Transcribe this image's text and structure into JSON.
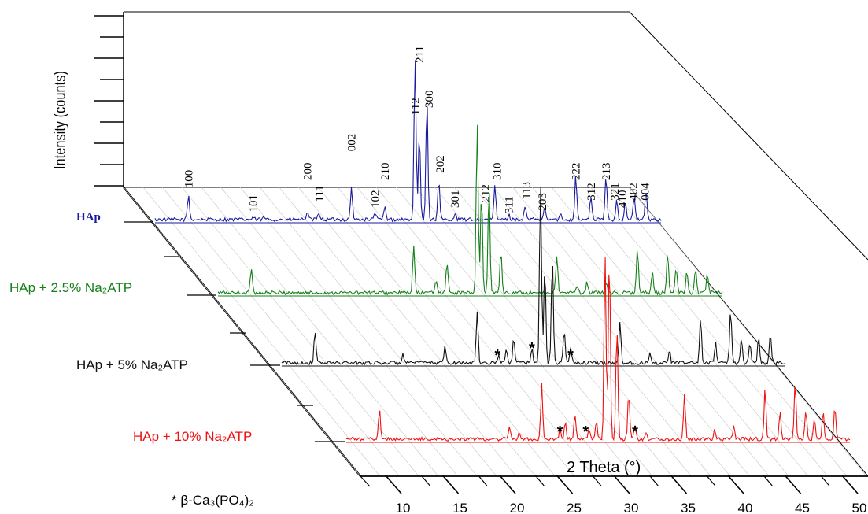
{
  "chart_data": {
    "type": "line",
    "xlabel": "2 Theta (°)",
    "ylabel": "Intensity (counts)",
    "x_ticks": [
      10,
      15,
      20,
      25,
      30,
      35,
      40,
      45,
      50
    ],
    "xlim": [
      10,
      50
    ],
    "footnote": {
      "mark": "*",
      "text": "β-Ca₃(PO₄)₂"
    },
    "series": [
      {
        "name": "HAp",
        "color": "#1a1a9e",
        "peaks": [
          {
            "x": 10.8,
            "y": 34
          },
          {
            "x": 16.8,
            "y": 3
          },
          {
            "x": 17.8,
            "y": 3
          },
          {
            "x": 21.8,
            "y": 10
          },
          {
            "x": 22.9,
            "y": 10
          },
          {
            "x": 25.9,
            "y": 44
          },
          {
            "x": 28.1,
            "y": 10
          },
          {
            "x": 29.0,
            "y": 18
          },
          {
            "x": 31.8,
            "y": 228
          },
          {
            "x": 32.2,
            "y": 118
          },
          {
            "x": 32.9,
            "y": 170
          },
          {
            "x": 34.0,
            "y": 54
          },
          {
            "x": 35.5,
            "y": 8
          },
          {
            "x": 39.2,
            "y": 46
          },
          {
            "x": 40.5,
            "y": 6
          },
          {
            "x": 42.0,
            "y": 18
          },
          {
            "x": 43.8,
            "y": 16
          },
          {
            "x": 45.3,
            "y": 6
          },
          {
            "x": 46.7,
            "y": 62
          },
          {
            "x": 48.1,
            "y": 32
          },
          {
            "x": 49.5,
            "y": 60
          },
          {
            "x": 50.5,
            "y": 28
          },
          {
            "x": 51.3,
            "y": 22
          },
          {
            "x": 52.1,
            "y": 32
          },
          {
            "x": 53.2,
            "y": 40
          }
        ],
        "annotations": [
          {
            "text": "100",
            "x": 10.8,
            "y": 40
          },
          {
            "text": "101",
            "x": 16.8,
            "y": 6
          },
          {
            "text": "200",
            "x": 21.8,
            "y": 50
          },
          {
            "text": "111",
            "x": 22.9,
            "y": 20
          },
          {
            "text": "002",
            "x": 25.9,
            "y": 90
          },
          {
            "text": "102",
            "x": 28.1,
            "y": 12
          },
          {
            "text": "210",
            "x": 29.0,
            "y": 50
          },
          {
            "text": "112",
            "x": 31.8,
            "y": 140
          },
          {
            "text": "211",
            "x": 32.2,
            "y": 212
          },
          {
            "text": "300",
            "x": 33.1,
            "y": 150
          },
          {
            "text": "202",
            "x": 34.1,
            "y": 60
          },
          {
            "text": "301",
            "x": 35.5,
            "y": 12
          },
          {
            "text": "212",
            "x": 38.3,
            "y": 20
          },
          {
            "text": "310",
            "x": 39.4,
            "y": 50
          },
          {
            "text": "311",
            "x": 40.5,
            "y": 4
          },
          {
            "text": "113",
            "x": 42.1,
            "y": 24
          },
          {
            "text": "203",
            "x": 43.6,
            "y": 8
          },
          {
            "text": "222",
            "x": 46.7,
            "y": 50
          },
          {
            "text": "312",
            "x": 48.1,
            "y": 22
          },
          {
            "text": "213",
            "x": 49.5,
            "y": 50
          },
          {
            "text": "321",
            "x": 50.3,
            "y": 22
          },
          {
            "text": "410",
            "x": 51.0,
            "y": 12
          },
          {
            "text": "402",
            "x": 52.0,
            "y": 22
          },
          {
            "text": "004",
            "x": 53.1,
            "y": 22
          }
        ]
      },
      {
        "name": "HAp + 2.5% Na₂ATP",
        "color": "#15801a",
        "peaks": [
          {
            "x": 10.8,
            "y": 36
          },
          {
            "x": 25.9,
            "y": 64
          },
          {
            "x": 28.0,
            "y": 18
          },
          {
            "x": 29.0,
            "y": 42
          },
          {
            "x": 31.8,
            "y": 238
          },
          {
            "x": 32.2,
            "y": 140
          },
          {
            "x": 32.9,
            "y": 150
          },
          {
            "x": 34.0,
            "y": 58
          },
          {
            "x": 39.2,
            "y": 52
          },
          {
            "x": 41.1,
            "y": 10
          },
          {
            "x": 42.0,
            "y": 14
          },
          {
            "x": 43.8,
            "y": 16
          },
          {
            "x": 46.7,
            "y": 60
          },
          {
            "x": 48.1,
            "y": 28
          },
          {
            "x": 49.5,
            "y": 58
          },
          {
            "x": 50.3,
            "y": 34
          },
          {
            "x": 51.3,
            "y": 30
          },
          {
            "x": 52.1,
            "y": 36
          },
          {
            "x": 53.2,
            "y": 26
          }
        ]
      },
      {
        "name": "HAp + 5% Na₂ATP",
        "color": "#111111",
        "peaks": [
          {
            "x": 10.8,
            "y": 42
          },
          {
            "x": 19.0,
            "y": 12
          },
          {
            "x": 22.9,
            "y": 22
          },
          {
            "x": 25.9,
            "y": 72
          },
          {
            "x": 27.9,
            "y": 12
          },
          {
            "x": 28.6,
            "y": 18
          },
          {
            "x": 29.3,
            "y": 36
          },
          {
            "x": 31.0,
            "y": 22
          },
          {
            "x": 31.8,
            "y": 248
          },
          {
            "x": 32.2,
            "y": 136
          },
          {
            "x": 32.9,
            "y": 146
          },
          {
            "x": 34.0,
            "y": 44
          },
          {
            "x": 34.6,
            "y": 22
          },
          {
            "x": 39.2,
            "y": 56
          },
          {
            "x": 42.0,
            "y": 14
          },
          {
            "x": 43.8,
            "y": 18
          },
          {
            "x": 46.7,
            "y": 62
          },
          {
            "x": 48.1,
            "y": 30
          },
          {
            "x": 49.5,
            "y": 74
          },
          {
            "x": 50.5,
            "y": 36
          },
          {
            "x": 51.3,
            "y": 28
          },
          {
            "x": 52.1,
            "y": 34
          },
          {
            "x": 53.2,
            "y": 40
          }
        ],
        "annotations": [
          {
            "text": "*",
            "x": 27.8,
            "y": 14
          },
          {
            "text": "*",
            "x": 31.0,
            "y": 24
          },
          {
            "text": "*",
            "x": 34.6,
            "y": 14
          }
        ]
      },
      {
        "name": "HAp + 10% Na₂ATP",
        "color": "#ee1111",
        "peaks": [
          {
            "x": 10.8,
            "y": 42
          },
          {
            "x": 22.9,
            "y": 18
          },
          {
            "x": 23.8,
            "y": 10
          },
          {
            "x": 25.9,
            "y": 76
          },
          {
            "x": 27.6,
            "y": 14
          },
          {
            "x": 28.1,
            "y": 22
          },
          {
            "x": 29.0,
            "y": 34
          },
          {
            "x": 30.3,
            "y": 14
          },
          {
            "x": 31.0,
            "y": 24
          },
          {
            "x": 31.8,
            "y": 258
          },
          {
            "x": 32.2,
            "y": 258
          },
          {
            "x": 32.9,
            "y": 156
          },
          {
            "x": 34.0,
            "y": 66
          },
          {
            "x": 34.6,
            "y": 20
          },
          {
            "x": 35.6,
            "y": 10
          },
          {
            "x": 39.2,
            "y": 62
          },
          {
            "x": 42.0,
            "y": 16
          },
          {
            "x": 43.8,
            "y": 18
          },
          {
            "x": 46.7,
            "y": 70
          },
          {
            "x": 48.1,
            "y": 40
          },
          {
            "x": 49.5,
            "y": 76
          },
          {
            "x": 50.5,
            "y": 40
          },
          {
            "x": 51.3,
            "y": 30
          },
          {
            "x": 52.1,
            "y": 38
          },
          {
            "x": 53.2,
            "y": 46
          }
        ],
        "annotations": [
          {
            "text": "*",
            "x": 27.6,
            "y": 14
          },
          {
            "text": "*",
            "x": 30.0,
            "y": 14
          },
          {
            "text": "*",
            "x": 34.6,
            "y": 14
          }
        ]
      }
    ]
  }
}
